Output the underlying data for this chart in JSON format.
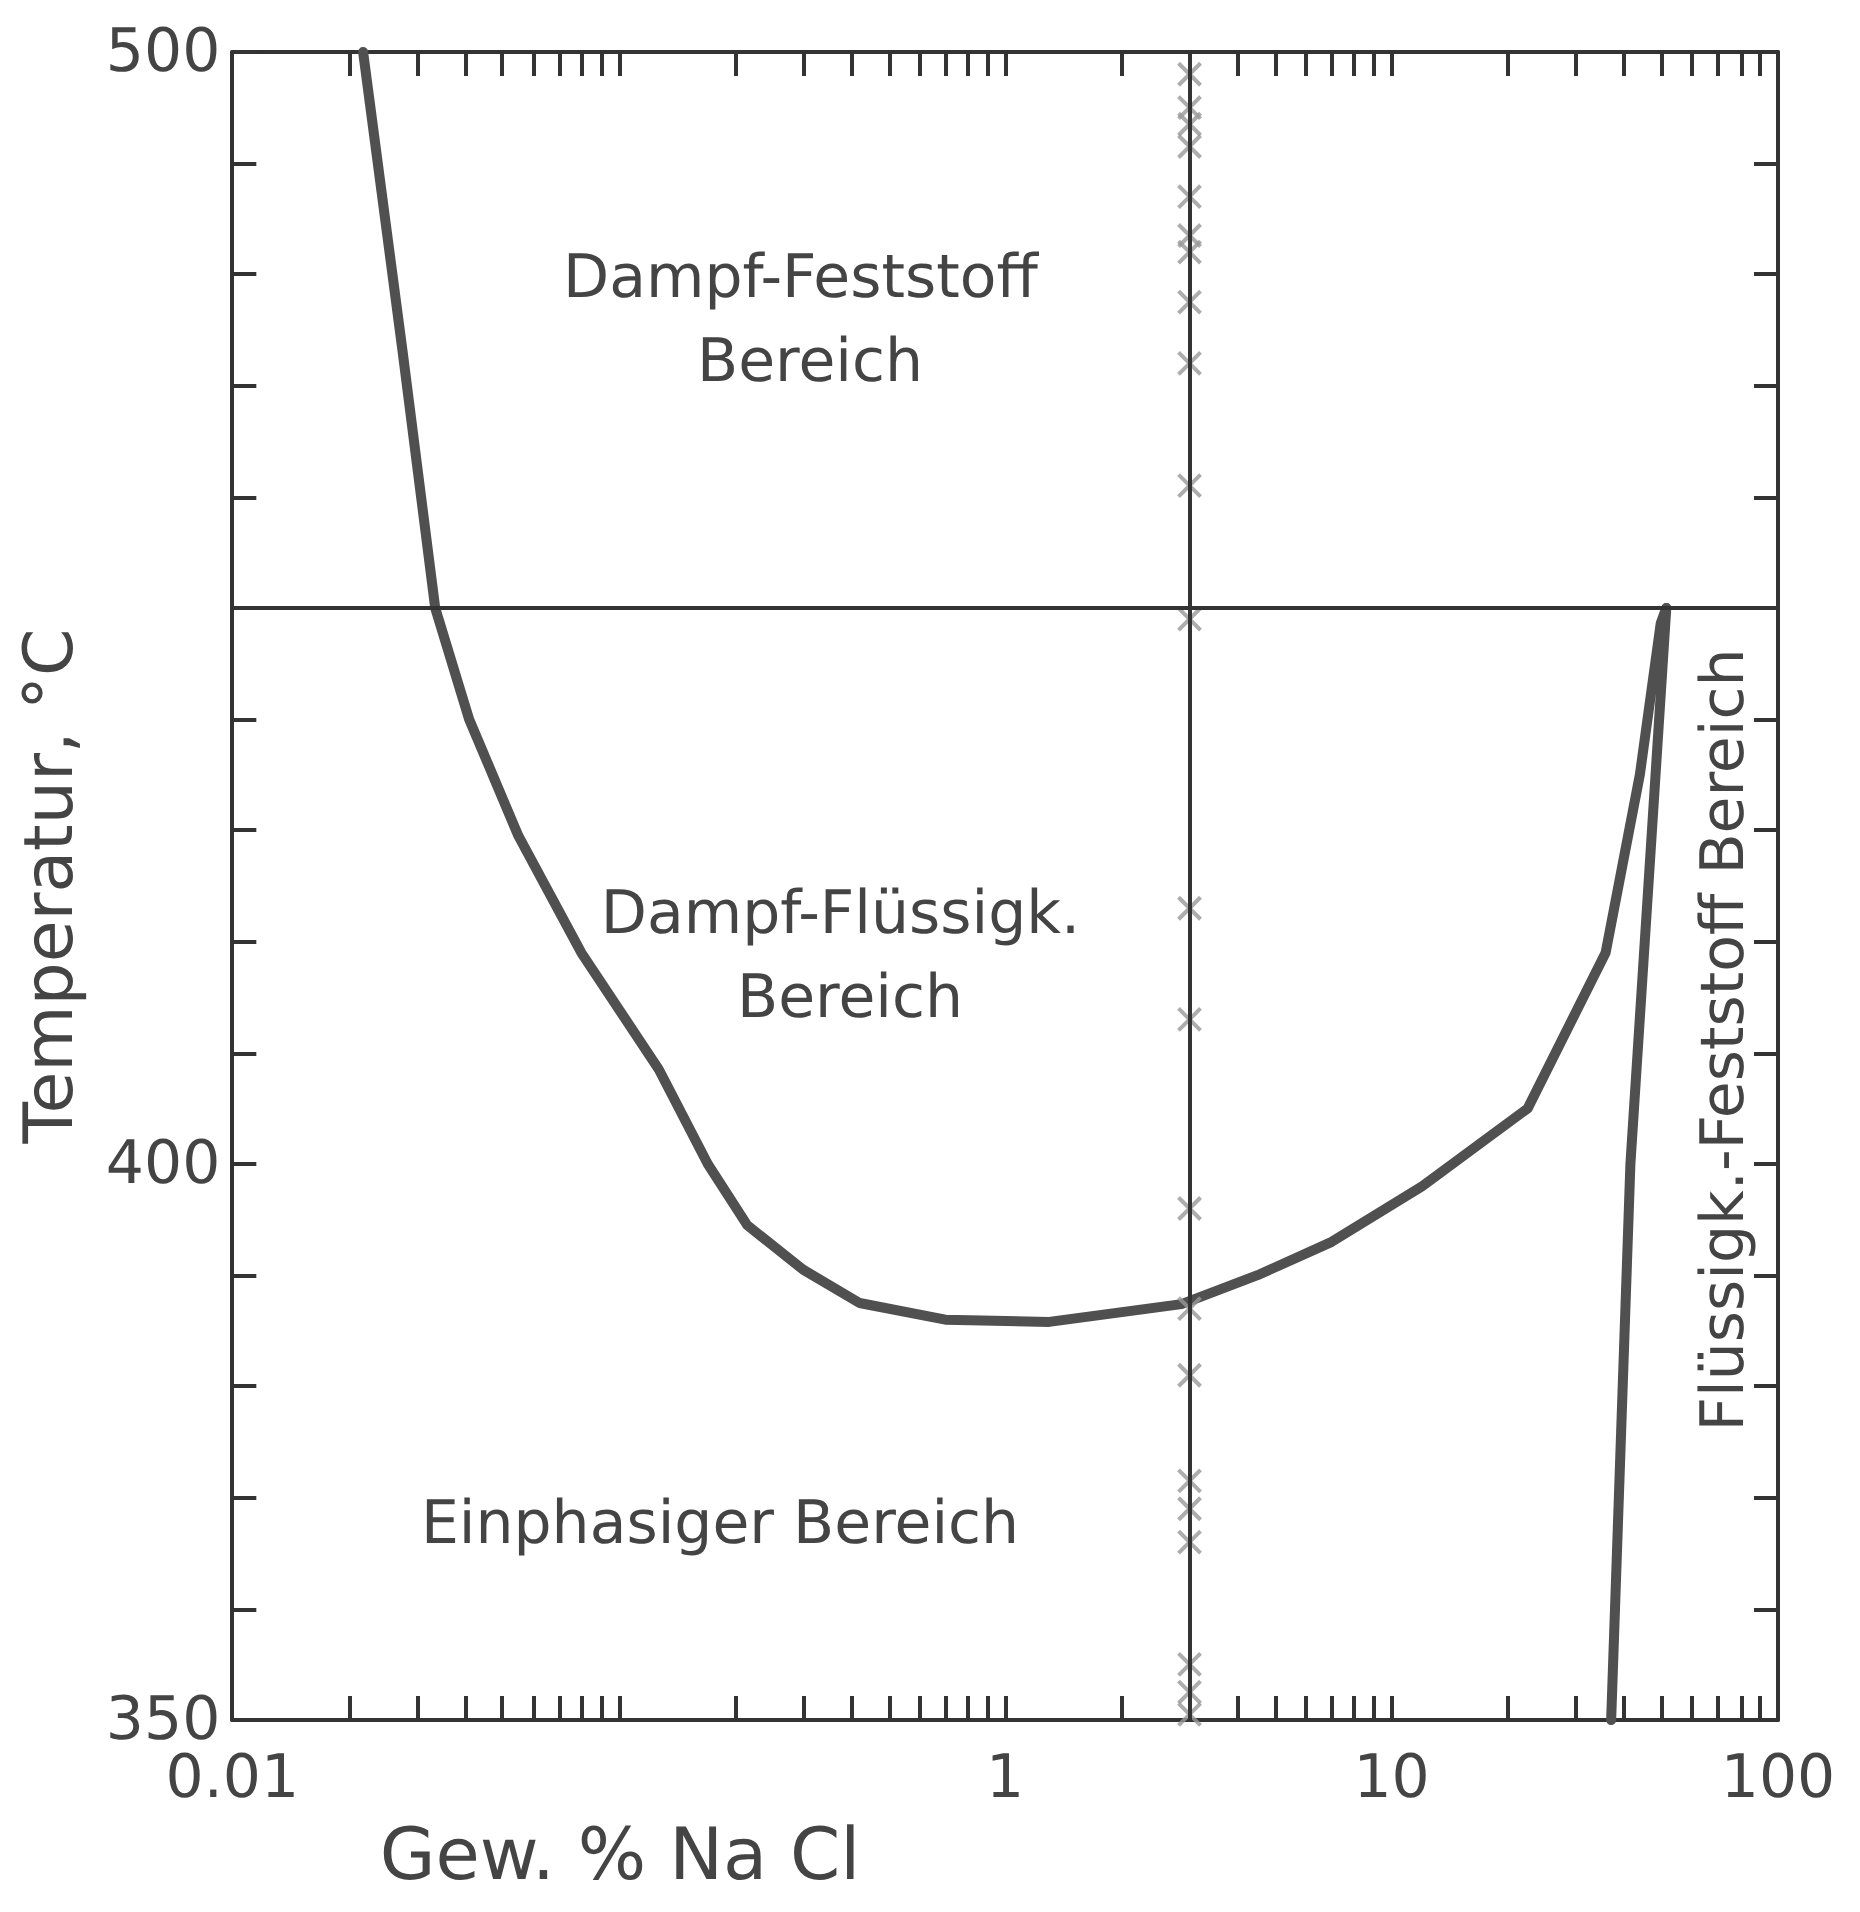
{
  "chart_data": {
    "type": "line",
    "xlabel": "Gew. % Na Cl",
    "ylabel": "Temperatur, °C",
    "log": "x",
    "xlim": [
      0.01,
      100
    ],
    "ylim": [
      350,
      500
    ],
    "xticks": [
      {
        "value": 0.01,
        "label": "0.01"
      },
      {
        "value": 0.02,
        "label": null
      },
      {
        "value": 0.03,
        "label": null
      },
      {
        "value": 0.04,
        "label": null
      },
      {
        "value": 0.05,
        "label": null
      },
      {
        "value": 0.06,
        "label": null
      },
      {
        "value": 0.07,
        "label": null
      },
      {
        "value": 0.08,
        "label": null
      },
      {
        "value": 0.09,
        "label": null
      },
      {
        "value": 0.1,
        "label": null
      },
      {
        "value": 0.2,
        "label": null
      },
      {
        "value": 0.3,
        "label": null
      },
      {
        "value": 0.4,
        "label": null
      },
      {
        "value": 0.5,
        "label": null
      },
      {
        "value": 0.6,
        "label": null
      },
      {
        "value": 0.7,
        "label": null
      },
      {
        "value": 0.8,
        "label": null
      },
      {
        "value": 0.9,
        "label": null
      },
      {
        "value": 1,
        "label": "1"
      },
      {
        "value": 2,
        "label": null
      },
      {
        "value": 3,
        "label": null
      },
      {
        "value": 4,
        "label": null
      },
      {
        "value": 5,
        "label": null
      },
      {
        "value": 6,
        "label": null
      },
      {
        "value": 7,
        "label": null
      },
      {
        "value": 8,
        "label": null
      },
      {
        "value": 9,
        "label": null
      },
      {
        "value": 10,
        "label": "10"
      },
      {
        "value": 20,
        "label": null
      },
      {
        "value": 30,
        "label": null
      },
      {
        "value": 40,
        "label": null
      },
      {
        "value": 50,
        "label": null
      },
      {
        "value": 60,
        "label": null
      },
      {
        "value": 70,
        "label": null
      },
      {
        "value": 80,
        "label": null
      },
      {
        "value": 90,
        "label": null
      },
      {
        "value": 100,
        "label": "100"
      }
    ],
    "yticks": [
      350,
      {
        "value": 360,
        "label": null
      },
      {
        "value": 370,
        "label": null
      },
      {
        "value": 380,
        "label": null
      },
      {
        "value": 390,
        "label": null
      },
      400,
      {
        "value": 410,
        "label": null
      },
      {
        "value": 420,
        "label": null
      },
      {
        "value": 430,
        "label": null
      },
      {
        "value": 440,
        "label": null
      },
      {
        "value": 450,
        "label": null
      },
      {
        "value": 460,
        "label": null
      },
      {
        "value": 470,
        "label": null
      },
      {
        "value": 480,
        "label": null
      },
      {
        "value": 490,
        "label": null
      },
      500
    ],
    "grid": false,
    "marker": "cross",
    "series": [
      {
        "color": "#505050",
        "marker": "none",
        "x": [
          0.0218,
          0.0276,
          0.0335,
          0.041,
          0.055,
          0.08,
          0.127,
          0.17,
          0.215,
          0.3,
          0.42,
          0.7,
          1.3,
          2.86,
          4.5,
          7,
          12,
          22.5,
          35.8,
          43.9,
          49.7,
          51.4
        ],
        "values": [
          500,
          473,
          450,
          440,
          429.5,
          419,
          408.5,
          400,
          394.5,
          390.5,
          387.5,
          386,
          385.8,
          387.4,
          390,
          393,
          398,
          405,
          419,
          435,
          448.6,
          450
        ]
      },
      {
        "color": "#505050",
        "marker": "none",
        "x": [
          37,
          41.5,
          51.4
        ],
        "values": [
          350,
          400,
          450
        ]
      },
      {
        "type": "scatter",
        "color": "#999999",
        "x": [
          3,
          3,
          3,
          3,
          3,
          3,
          3,
          3,
          3,
          3,
          3,
          3,
          3,
          3,
          3,
          3,
          3,
          3,
          3,
          3,
          3,
          3
        ],
        "values": [
          498,
          495,
          493.5,
          491.5,
          487,
          483.5,
          482,
          477.5,
          472,
          461,
          449,
          423,
          413,
          396,
          387,
          381,
          371.5,
          369,
          366,
          355,
          352.5,
          350.5
        ]
      }
    ],
    "ref_lines": [
      {
        "axis": "y",
        "value": 450,
        "color": "#333333"
      },
      {
        "axis": "x",
        "value": 3,
        "color": "#333333"
      }
    ],
    "annotations": [
      "Dampf-Feststoff Bereich",
      "Dampf-Flüssigk. Bereich",
      "Einphasiger Bereich",
      "Flüssigk.-Feststoff Bereich"
    ]
  }
}
